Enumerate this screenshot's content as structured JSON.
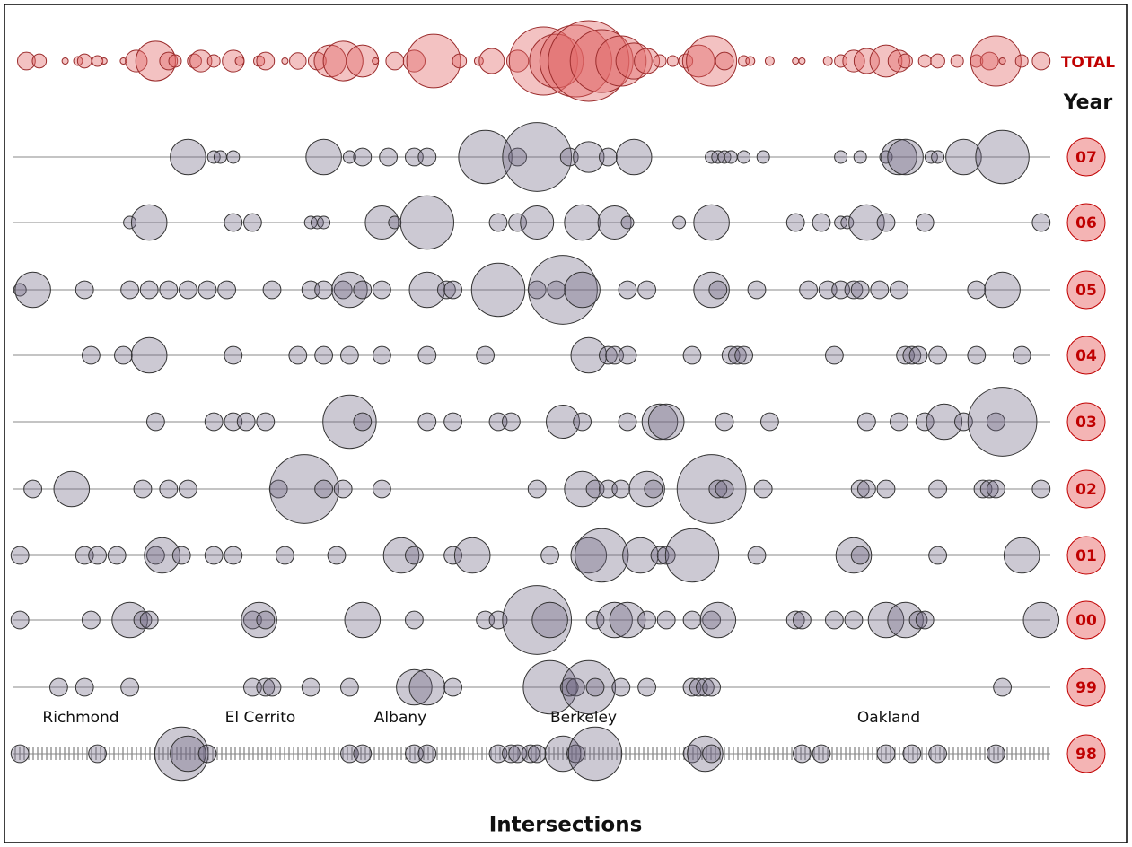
{
  "chart_data": {
    "type": "bubble",
    "legend_title": "Year",
    "xlabel": "Intersections",
    "regions": [
      "Richmond",
      "El Cerrito",
      "Albany",
      "Berkeley",
      "Oakland"
    ],
    "xlim": [
      0,
      160
    ],
    "series": [
      {
        "name": "TOTAL",
        "color": "#e06666",
        "x": [
          2,
          4,
          8,
          10,
          11,
          13,
          14,
          17,
          19,
          22,
          24,
          25,
          28,
          29,
          31,
          34,
          35,
          38,
          39,
          42,
          44,
          47,
          49,
          51,
          54,
          56,
          59,
          62,
          65,
          69,
          72,
          74,
          78,
          82,
          84,
          87,
          89,
          91,
          94,
          96,
          98,
          100,
          102,
          104,
          106,
          108,
          110,
          113,
          114,
          117,
          121,
          122,
          126,
          128,
          130,
          132,
          135,
          137,
          138,
          141,
          143,
          146,
          149,
          151,
          152,
          153,
          156,
          159
        ],
        "values": [
          8,
          5,
          1,
          2,
          5,
          3,
          1,
          1,
          12,
          40,
          8,
          4,
          5,
          12,
          4,
          12,
          2,
          3,
          8,
          1,
          7,
          8,
          26,
          40,
          26,
          1,
          8,
          12,
          73,
          5,
          2,
          16,
          12,
          118,
          73,
          131,
          165,
          100,
          64,
          33,
          16,
          4,
          3,
          5,
          26,
          64,
          8,
          3,
          2,
          2,
          1,
          1,
          2,
          4,
          12,
          16,
          26,
          12,
          5,
          4,
          5,
          4,
          4,
          8,
          64,
          1,
          4,
          8
        ]
      },
      {
        "name": "07",
        "color": "#6e6482",
        "x": [
          27,
          31,
          32,
          34,
          48,
          52,
          54,
          58,
          62,
          64,
          73,
          78,
          81,
          86,
          89,
          92,
          96,
          108,
          109,
          110,
          111,
          113,
          116,
          128,
          131,
          135,
          137,
          138,
          142,
          143,
          147,
          153
        ],
        "values": [
          8,
          1,
          1,
          1,
          8,
          1,
          2,
          2,
          2,
          2,
          18,
          2,
          30,
          2,
          6,
          2,
          8,
          1,
          1,
          1,
          1,
          1,
          1,
          1,
          1,
          1,
          8,
          8,
          1,
          1,
          8,
          18
        ]
      },
      {
        "name": "06",
        "color": "#6e6482",
        "x": [
          18,
          21,
          34,
          37,
          46,
          47,
          48,
          57,
          59,
          64,
          75,
          78,
          81,
          88,
          93,
          95,
          103,
          108,
          121,
          125,
          128,
          129,
          132,
          135,
          141,
          159
        ],
        "values": [
          1,
          8,
          2,
          2,
          1,
          1,
          1,
          7,
          1,
          18,
          2,
          2,
          7,
          8,
          7,
          1,
          1,
          8,
          2,
          2,
          1,
          1,
          8,
          2,
          2,
          2
        ]
      },
      {
        "name": "05",
        "color": "#6e6482",
        "x": [
          1,
          3,
          11,
          18,
          21,
          24,
          27,
          30,
          33,
          40,
          46,
          48,
          51,
          52,
          54,
          57,
          64,
          67,
          68,
          75,
          81,
          84,
          85,
          88,
          95,
          98,
          108,
          109,
          115,
          123,
          126,
          128,
          130,
          131,
          134,
          137,
          149,
          153
        ],
        "values": [
          1,
          8,
          2,
          2,
          2,
          2,
          2,
          2,
          2,
          2,
          2,
          2,
          2,
          8,
          2,
          2,
          8,
          2,
          2,
          18,
          2,
          2,
          30,
          8,
          2,
          2,
          8,
          2,
          2,
          2,
          2,
          2,
          2,
          2,
          2,
          2,
          2,
          8
        ]
      },
      {
        "name": "04",
        "color": "#6e6482",
        "x": [
          12,
          17,
          21,
          34,
          44,
          48,
          52,
          57,
          64,
          73,
          89,
          92,
          93,
          95,
          105,
          111,
          112,
          113,
          127,
          138,
          139,
          140,
          143,
          149,
          156
        ],
        "values": [
          2,
          2,
          8,
          2,
          2,
          2,
          2,
          2,
          2,
          2,
          8,
          2,
          2,
          2,
          2,
          2,
          2,
          2,
          2,
          2,
          2,
          2,
          2,
          2,
          2
        ]
      },
      {
        "name": "03",
        "color": "#6e6482",
        "x": [
          22,
          31,
          34,
          36,
          39,
          52,
          54,
          64,
          68,
          75,
          77,
          85,
          88,
          95,
          100,
          101,
          110,
          117,
          132,
          137,
          141,
          144,
          147,
          152,
          153
        ],
        "values": [
          2,
          2,
          2,
          2,
          2,
          18,
          2,
          2,
          2,
          2,
          2,
          7,
          2,
          2,
          8,
          8,
          2,
          2,
          2,
          2,
          2,
          8,
          2,
          2,
          30
        ]
      },
      {
        "name": "02",
        "color": "#6e6482",
        "x": [
          3,
          9,
          20,
          24,
          27,
          41,
          45,
          48,
          51,
          57,
          81,
          88,
          90,
          92,
          94,
          98,
          99,
          108,
          109,
          110,
          116,
          131,
          132,
          135,
          143,
          150,
          151,
          152,
          159
        ],
        "values": [
          2,
          8,
          2,
          2,
          2,
          2,
          30,
          2,
          2,
          2,
          2,
          8,
          2,
          2,
          2,
          8,
          2,
          30,
          2,
          2,
          2,
          2,
          2,
          2,
          2,
          2,
          2,
          2,
          2
        ]
      },
      {
        "name": "01",
        "color": "#6e6482",
        "x": [
          1,
          11,
          13,
          16,
          22,
          23,
          26,
          31,
          34,
          42,
          50,
          60,
          62,
          68,
          71,
          83,
          89,
          91,
          97,
          100,
          101,
          105,
          115,
          130,
          131,
          143,
          156
        ],
        "values": [
          2,
          2,
          2,
          2,
          2,
          8,
          2,
          2,
          2,
          2,
          2,
          8,
          2,
          2,
          8,
          2,
          8,
          18,
          8,
          2,
          2,
          18,
          2,
          8,
          2,
          2,
          8
        ]
      },
      {
        "name": "00",
        "color": "#6e6482",
        "x": [
          1,
          12,
          18,
          20,
          21,
          37,
          38,
          39,
          54,
          62,
          73,
          75,
          81,
          83,
          90,
          93,
          95,
          98,
          101,
          105,
          108,
          109,
          121,
          122,
          127,
          130,
          135,
          138,
          140,
          141,
          159
        ],
        "values": [
          2,
          2,
          8,
          2,
          2,
          2,
          8,
          2,
          8,
          2,
          2,
          2,
          30,
          8,
          2,
          8,
          8,
          2,
          2,
          2,
          2,
          8,
          2,
          2,
          2,
          2,
          8,
          8,
          2,
          2,
          8
        ]
      },
      {
        "name": "99",
        "color": "#6e6482",
        "x": [
          7,
          11,
          18,
          37,
          39,
          40,
          46,
          52,
          62,
          64,
          68,
          83,
          86,
          87,
          89,
          90,
          94,
          98,
          105,
          106,
          107,
          108,
          153
        ],
        "values": [
          2,
          2,
          2,
          2,
          2,
          2,
          2,
          2,
          8,
          8,
          2,
          18,
          2,
          2,
          18,
          2,
          2,
          2,
          2,
          2,
          2,
          2,
          2
        ]
      },
      {
        "name": "98",
        "color": "#6e6482",
        "x": [
          1,
          13,
          26,
          27,
          30,
          52,
          54,
          62,
          64,
          75,
          77,
          78,
          80,
          81,
          85,
          87,
          90,
          105,
          107,
          108,
          122,
          125,
          135,
          139,
          143,
          152
        ],
        "values": [
          2,
          2,
          18,
          8,
          2,
          2,
          2,
          2,
          2,
          2,
          2,
          2,
          2,
          2,
          8,
          2,
          18,
          2,
          8,
          2,
          2,
          2,
          2,
          2,
          2,
          2
        ]
      }
    ]
  }
}
